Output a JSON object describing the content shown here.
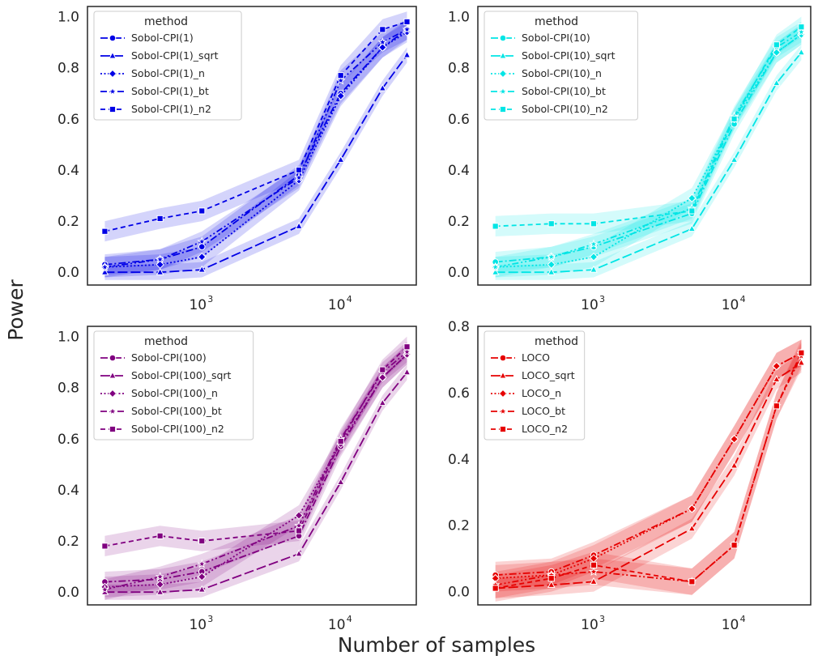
{
  "figure": {
    "xlabel": "Number of samples",
    "ylabel": "Power"
  },
  "chart_data": [
    {
      "type": "line",
      "x_scale": "log",
      "xlim": [
        150,
        35000
      ],
      "ylim": [
        -0.05,
        1.04
      ],
      "yticks": [
        0.0,
        0.2,
        0.4,
        0.6,
        0.8,
        1.0
      ],
      "ytick_labels": [
        "0.0",
        "0.2",
        "0.4",
        "0.6",
        "0.8",
        "1.0"
      ],
      "xticks": [
        1000,
        10000
      ],
      "xtick_labels": [
        {
          "base": "10",
          "exp": "3"
        },
        {
          "base": "10",
          "exp": "4"
        }
      ],
      "legend": {
        "title": "method",
        "placement": "upper-left"
      },
      "color": "#0000e6",
      "x": [
        200,
        500,
        1000,
        5000,
        10000,
        20000,
        30000
      ],
      "series": [
        {
          "name": "Sobol-CPI(1)",
          "marker": "circle",
          "dash": "dashdot",
          "values": [
            0.03,
            0.05,
            0.1,
            0.38,
            0.7,
            0.88,
            0.95
          ],
          "band": 0.04
        },
        {
          "name": "Sobol-CPI(1)_sqrt",
          "marker": "triangle",
          "dash": "longdash",
          "values": [
            0.0,
            0.0,
            0.01,
            0.18,
            0.44,
            0.72,
            0.85
          ],
          "band": 0.03
        },
        {
          "name": "Sobol-CPI(1)_n",
          "marker": "diamond",
          "dash": "dotted",
          "values": [
            0.02,
            0.03,
            0.06,
            0.36,
            0.69,
            0.88,
            0.94
          ],
          "band": 0.04
        },
        {
          "name": "Sobol-CPI(1)_bt",
          "marker": "star",
          "dash": "dashdotdot",
          "values": [
            0.02,
            0.05,
            0.12,
            0.37,
            0.75,
            0.9,
            0.95
          ],
          "band": 0.04
        },
        {
          "name": "Sobol-CPI(1)_n2",
          "marker": "square",
          "dash": "dashed",
          "values": [
            0.16,
            0.21,
            0.24,
            0.4,
            0.77,
            0.95,
            0.98
          ],
          "band": 0.04
        }
      ]
    },
    {
      "type": "line",
      "x_scale": "log",
      "xlim": [
        150,
        35000
      ],
      "ylim": [
        -0.05,
        1.04
      ],
      "yticks": [
        0.0,
        0.2,
        0.4,
        0.6,
        0.8,
        1.0
      ],
      "ytick_labels": [
        "0.0",
        "0.2",
        "0.4",
        "0.6",
        "0.8",
        "1.0"
      ],
      "xticks": [
        1000,
        10000
      ],
      "xtick_labels": [
        {
          "base": "10",
          "exp": "3"
        },
        {
          "base": "10",
          "exp": "4"
        }
      ],
      "legend": {
        "title": "method",
        "placement": "upper-left"
      },
      "color": "#00e5e5",
      "x": [
        200,
        500,
        1000,
        5000,
        10000,
        20000,
        30000
      ],
      "series": [
        {
          "name": "Sobol-CPI(10)",
          "marker": "circle",
          "dash": "dashdot",
          "values": [
            0.04,
            0.06,
            0.1,
            0.23,
            0.58,
            0.86,
            0.93
          ],
          "band": 0.04
        },
        {
          "name": "Sobol-CPI(10)_sqrt",
          "marker": "triangle",
          "dash": "longdash",
          "values": [
            0.0,
            0.0,
            0.01,
            0.17,
            0.44,
            0.74,
            0.86
          ],
          "band": 0.03
        },
        {
          "name": "Sobol-CPI(10)_n",
          "marker": "diamond",
          "dash": "dotted",
          "values": [
            0.02,
            0.03,
            0.06,
            0.29,
            0.6,
            0.86,
            0.93
          ],
          "band": 0.04
        },
        {
          "name": "Sobol-CPI(10)_bt",
          "marker": "star",
          "dash": "dashdotdot",
          "values": [
            0.02,
            0.06,
            0.11,
            0.25,
            0.61,
            0.88,
            0.94
          ],
          "band": 0.04
        },
        {
          "name": "Sobol-CPI(10)_n2",
          "marker": "square",
          "dash": "dashed",
          "values": [
            0.18,
            0.19,
            0.19,
            0.24,
            0.6,
            0.89,
            0.96
          ],
          "band": 0.04
        }
      ]
    },
    {
      "type": "line",
      "x_scale": "log",
      "xlim": [
        150,
        35000
      ],
      "ylim": [
        -0.05,
        1.04
      ],
      "yticks": [
        0.0,
        0.2,
        0.4,
        0.6,
        0.8,
        1.0
      ],
      "ytick_labels": [
        "0.0",
        "0.2",
        "0.4",
        "0.6",
        "0.8",
        "1.0"
      ],
      "xticks": [
        1000,
        10000
      ],
      "xtick_labels": [
        {
          "base": "10",
          "exp": "3"
        },
        {
          "base": "10",
          "exp": "4"
        }
      ],
      "legend": {
        "title": "method",
        "placement": "upper-left"
      },
      "color": "#800080",
      "x": [
        200,
        500,
        1000,
        5000,
        10000,
        20000,
        30000
      ],
      "series": [
        {
          "name": "Sobol-CPI(100)",
          "marker": "circle",
          "dash": "dashdot",
          "values": [
            0.04,
            0.05,
            0.08,
            0.22,
            0.57,
            0.84,
            0.93
          ],
          "band": 0.04
        },
        {
          "name": "Sobol-CPI(100)_sqrt",
          "marker": "triangle",
          "dash": "longdash",
          "values": [
            0.0,
            0.0,
            0.01,
            0.15,
            0.43,
            0.74,
            0.86
          ],
          "band": 0.03
        },
        {
          "name": "Sobol-CPI(100)_n",
          "marker": "diamond",
          "dash": "dotted",
          "values": [
            0.02,
            0.03,
            0.06,
            0.3,
            0.58,
            0.84,
            0.93
          ],
          "band": 0.04
        },
        {
          "name": "Sobol-CPI(100)_bt",
          "marker": "star",
          "dash": "dashdotdot",
          "values": [
            0.01,
            0.06,
            0.11,
            0.26,
            0.6,
            0.86,
            0.94
          ],
          "band": 0.04
        },
        {
          "name": "Sobol-CPI(100)_n2",
          "marker": "square",
          "dash": "dashed",
          "values": [
            0.18,
            0.22,
            0.2,
            0.24,
            0.59,
            0.87,
            0.96
          ],
          "band": 0.04
        }
      ]
    },
    {
      "type": "line",
      "x_scale": "log",
      "xlim": [
        150,
        35000
      ],
      "ylim": [
        -0.04,
        0.8
      ],
      "yticks": [
        0.0,
        0.2,
        0.4,
        0.6,
        0.8
      ],
      "ytick_labels": [
        "0.0",
        "0.2",
        "0.4",
        "0.6",
        "0.8"
      ],
      "xticks": [
        1000,
        10000
      ],
      "xtick_labels": [
        {
          "base": "10",
          "exp": "3"
        },
        {
          "base": "10",
          "exp": "4"
        }
      ],
      "legend": {
        "title": "method",
        "placement": "upper-left"
      },
      "color": "#e60000",
      "x": [
        200,
        500,
        1000,
        5000,
        10000,
        20000,
        30000
      ],
      "series": [
        {
          "name": "LOCO",
          "marker": "circle",
          "dash": "dashdot",
          "values": [
            0.05,
            0.06,
            0.11,
            0.25,
            0.46,
            0.68,
            0.72
          ],
          "band": 0.04
        },
        {
          "name": "LOCO_sqrt",
          "marker": "triangle",
          "dash": "longdash",
          "values": [
            0.01,
            0.02,
            0.03,
            0.19,
            0.38,
            0.64,
            0.69
          ],
          "band": 0.03
        },
        {
          "name": "LOCO_n",
          "marker": "diamond",
          "dash": "dotted",
          "values": [
            0.04,
            0.05,
            0.1,
            0.25,
            0.46,
            0.68,
            0.72
          ],
          "band": 0.04
        },
        {
          "name": "LOCO_bt",
          "marker": "star",
          "dash": "dashdotdot",
          "values": [
            0.02,
            0.05,
            0.06,
            0.03,
            0.14,
            0.56,
            0.71
          ],
          "band": 0.04
        },
        {
          "name": "LOCO_n2",
          "marker": "square",
          "dash": "dashed",
          "values": [
            0.01,
            0.04,
            0.08,
            0.03,
            0.14,
            0.56,
            0.72
          ],
          "band": 0.04
        }
      ]
    }
  ]
}
